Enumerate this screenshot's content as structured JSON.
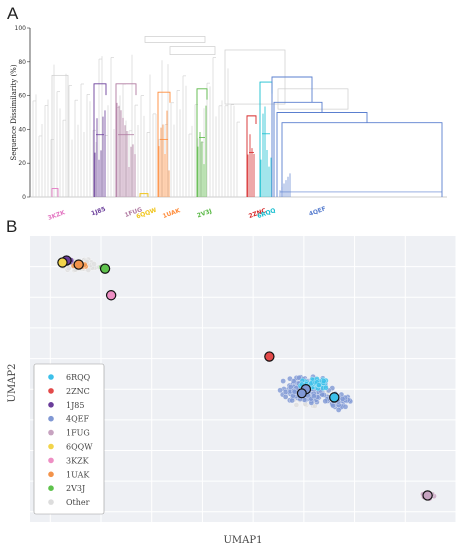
{
  "panels": {
    "a": "A",
    "b": "B"
  },
  "chart_data": [
    {
      "type": "dendrogram",
      "ylabel": "Sequence Dissimilarity (%)",
      "ylim": [
        0,
        100
      ],
      "yticks": [
        0,
        20,
        40,
        60,
        80,
        100
      ],
      "clusters": [
        {
          "label": "3KZK",
          "color": "#e377c2",
          "height": 5
        },
        {
          "label": "1J85",
          "color": "#6a3d9a",
          "height": 67
        },
        {
          "label": "1FUG",
          "color": "#b07aa1",
          "height": 67
        },
        {
          "label": "6QQW",
          "color": "#f0c419",
          "height": 2
        },
        {
          "label": "1UAK",
          "color": "#ff8c3a",
          "height": 62
        },
        {
          "label": "2V3J",
          "color": "#59b845",
          "height": 64
        },
        {
          "label": "2ZNC",
          "color": "#d62728",
          "height": 48
        },
        {
          "label": "6RQQ",
          "color": "#17becf",
          "height": 68
        },
        {
          "label": "4QEF",
          "color": "#5a7fcf",
          "height": 71
        }
      ],
      "other_color": "#d4d4d4"
    },
    {
      "type": "scatter",
      "xlabel": "UMAP1",
      "ylabel": "UMAP2",
      "legend_placement": "bottom-left",
      "series": [
        {
          "name": "6RQQ",
          "color": "#3cc0ea"
        },
        {
          "name": "2ZNC",
          "color": "#e34a4a"
        },
        {
          "name": "1J85",
          "color": "#6a3d9a"
        },
        {
          "name": "4QEF",
          "color": "#8098d4"
        },
        {
          "name": "1FUG",
          "color": "#c7a3c0"
        },
        {
          "name": "6QQW",
          "color": "#f2d44a"
        },
        {
          "name": "3KZK",
          "color": "#ee8fc4"
        },
        {
          "name": "1UAK",
          "color": "#f3934a"
        },
        {
          "name": "2V3J",
          "color": "#5ec24c"
        },
        {
          "name": "Other",
          "color": "#dddddd"
        }
      ],
      "clusters": [
        {
          "series": "1J85",
          "x": -9.2,
          "y": 8.3
        },
        {
          "series": "6QQW",
          "x": -9.4,
          "y": 8.2
        },
        {
          "series": "1UAK",
          "x": -8.6,
          "y": 8.1
        },
        {
          "series": "2V3J",
          "x": -7.3,
          "y": 7.9
        },
        {
          "series": "3KZK",
          "x": -7.0,
          "y": 6.6
        },
        {
          "series": "2ZNC",
          "x": 0.8,
          "y": 3.6
        },
        {
          "series": "4QEF",
          "x": 2.6,
          "y": 2.0
        },
        {
          "series": "6RQQ",
          "x": 4.0,
          "y": 1.6
        },
        {
          "series": "1FUG",
          "x": 8.6,
          "y": -3.2
        }
      ]
    }
  ]
}
